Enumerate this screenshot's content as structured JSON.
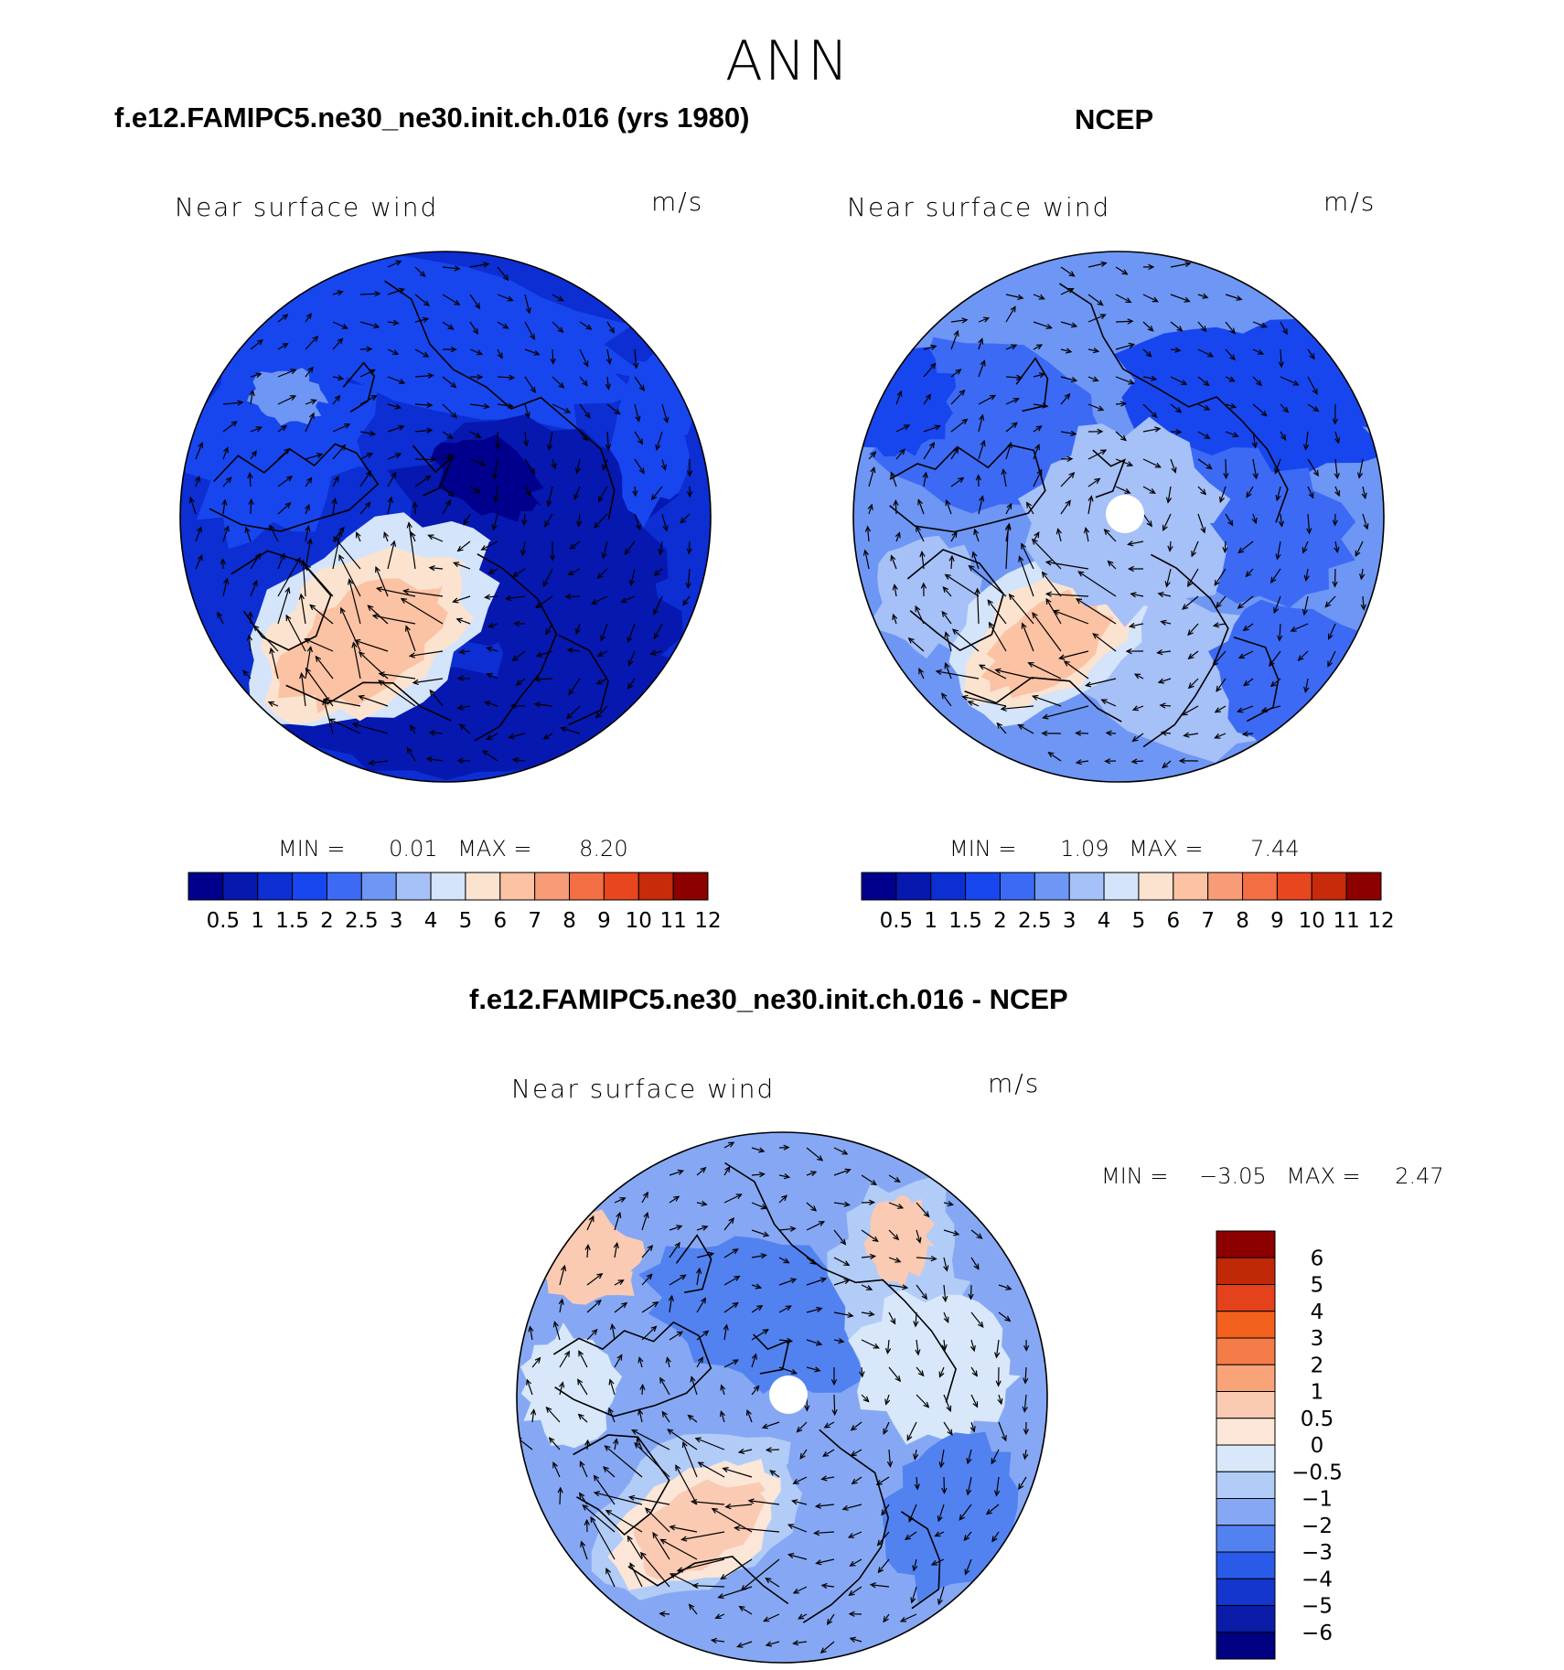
{
  "figure": {
    "season": "ANN"
  },
  "panels": [
    {
      "id": "model",
      "title": "f.e12.FAMIPC5.ne30_ne30.init.ch.016 (yrs 1980)",
      "variable": "Near surface wind",
      "units": "m/s",
      "stats": {
        "min_label": "MIN =",
        "min": "0.01",
        "max_label": "MAX =",
        "max": "8.20"
      }
    },
    {
      "id": "obs",
      "title": "NCEP",
      "variable": "Near surface wind",
      "units": "m/s",
      "stats": {
        "min_label": "MIN =",
        "min": "1.09",
        "max_label": "MAX =",
        "max": "7.44"
      }
    },
    {
      "id": "diff",
      "title": "f.e12.FAMIPC5.ne30_ne30.init.ch.016 - NCEP",
      "variable": "Near surface wind",
      "units": "m/s",
      "stats": {
        "min_label": "MIN =",
        "min": "−3.05",
        "max_label": "MAX =",
        "max": "2.47"
      }
    }
  ],
  "colorbars": {
    "absolute": {
      "labels": [
        "0.5",
        "1",
        "1.5",
        "2",
        "2.5",
        "3",
        "4",
        "5",
        "6",
        "7",
        "8",
        "9",
        "10",
        "11",
        "12"
      ],
      "colors": [
        "#00008c",
        "#0618b0",
        "#0c2ed2",
        "#1846ee",
        "#3c6af4",
        "#6e96f4",
        "#a6c0f8",
        "#d4e4fa",
        "#fbe3d0",
        "#fbc2a4",
        "#f89c78",
        "#f46e44",
        "#e8461e",
        "#c82a0c",
        "#8c0000"
      ]
    },
    "difference": {
      "labels": [
        "6",
        "5",
        "4",
        "3",
        "2",
        "1",
        "0.5",
        "0",
        "−0.5",
        "−1",
        "−2",
        "−3",
        "−4",
        "−5",
        "−6"
      ],
      "colors": [
        "#8c0000",
        "#c02808",
        "#e4421c",
        "#f4601e",
        "#f47c48",
        "#f8a478",
        "#fbcab2",
        "#fbe6d8",
        "#d8e8fa",
        "#b2ccf8",
        "#86a8f4",
        "#5282f0",
        "#2a5ae8",
        "#1436cc",
        "#0a1ca8",
        "#000080"
      ]
    }
  }
}
